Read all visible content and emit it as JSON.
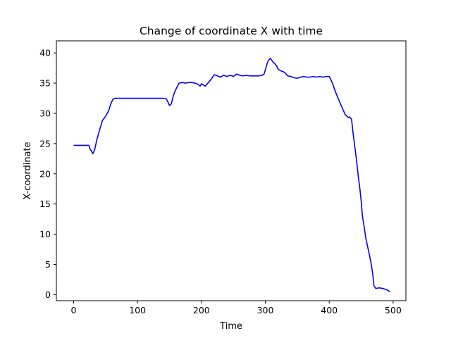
{
  "chart_data": {
    "type": "line",
    "title": "Change of coordinate X with time",
    "xlabel": "Time",
    "ylabel": "X-coordinate",
    "xlim": [
      -27,
      520
    ],
    "ylim": [
      -1,
      42
    ],
    "xticks": [
      0,
      100,
      200,
      300,
      400,
      500
    ],
    "yticks": [
      0,
      5,
      10,
      15,
      20,
      25,
      30,
      35,
      40
    ],
    "grid": false,
    "legend": "none",
    "series": [
      {
        "color": "#0000ff",
        "x": [
          0,
          10,
          20,
          24,
          26,
          28,
          30,
          33,
          36,
          40,
          45,
          50,
          55,
          58,
          60,
          62,
          65,
          70,
          80,
          90,
          100,
          110,
          120,
          130,
          140,
          145,
          148,
          150,
          153,
          155,
          158,
          162,
          165,
          170,
          175,
          180,
          185,
          190,
          195,
          198,
          200,
          203,
          206,
          210,
          215,
          220,
          225,
          230,
          235,
          240,
          245,
          250,
          255,
          260,
          265,
          270,
          275,
          280,
          285,
          290,
          295,
          298,
          300,
          303,
          305,
          308,
          310,
          312,
          315,
          318,
          320,
          325,
          330,
          335,
          340,
          345,
          350,
          355,
          360,
          365,
          370,
          375,
          380,
          385,
          390,
          395,
          400,
          405,
          410,
          415,
          420,
          425,
          428,
          430,
          432,
          435,
          437,
          440,
          443,
          445,
          448,
          450,
          452,
          455,
          457,
          460,
          463,
          465,
          468,
          470,
          473,
          476,
          480,
          485,
          490,
          495
        ],
        "y": [
          24.7,
          24.7,
          24.7,
          24.7,
          24.0,
          23.8,
          23.3,
          24.0,
          25.5,
          27.0,
          28.8,
          29.5,
          30.5,
          31.5,
          32.0,
          32.4,
          32.5,
          32.5,
          32.5,
          32.5,
          32.5,
          32.5,
          32.5,
          32.5,
          32.5,
          32.4,
          31.8,
          31.3,
          31.6,
          32.5,
          33.5,
          34.4,
          35.0,
          35.1,
          35.0,
          35.1,
          35.1,
          35.0,
          34.8,
          34.5,
          34.9,
          34.7,
          34.5,
          35.0,
          35.6,
          36.4,
          36.2,
          36.0,
          36.3,
          36.1,
          36.3,
          36.1,
          36.5,
          36.3,
          36.2,
          36.3,
          36.2,
          36.2,
          36.2,
          36.2,
          36.3,
          36.5,
          37.2,
          38.3,
          38.8,
          39.1,
          38.8,
          38.5,
          38.2,
          37.8,
          37.3,
          37.0,
          36.8,
          36.2,
          36.1,
          35.9,
          35.8,
          36.0,
          36.1,
          36.0,
          36.0,
          36.1,
          36.0,
          36.1,
          36.0,
          36.1,
          36.1,
          35.0,
          33.5,
          32.2,
          31.0,
          29.8,
          29.5,
          29.3,
          29.4,
          29.0,
          27.0,
          24.5,
          22.0,
          20.0,
          17.5,
          15.5,
          13.0,
          11.0,
          9.5,
          8.0,
          6.5,
          5.5,
          3.5,
          1.5,
          1.0,
          1.1,
          1.1,
          1.0,
          0.8,
          0.5
        ]
      }
    ]
  }
}
